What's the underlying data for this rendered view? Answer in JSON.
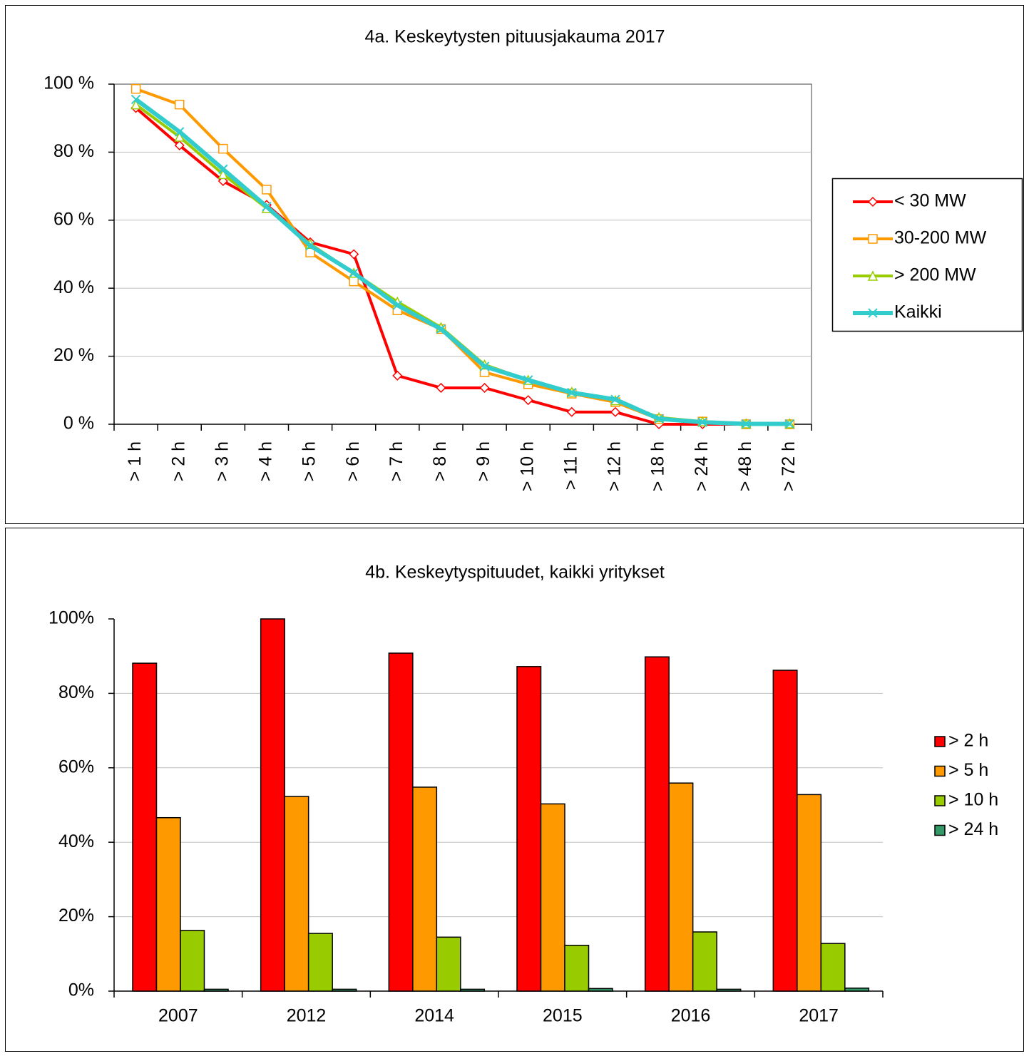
{
  "chart_data": [
    {
      "type": "line",
      "title": "4a. Keskeytysten pituusjakauma 2017",
      "categories": [
        "> 1 h",
        "> 2 h",
        "> 3 h",
        "> 4 h",
        "> 5 h",
        "> 6 h",
        "> 7 h",
        "> 8 h",
        "> 9 h",
        "> 10 h",
        "> 11 h",
        "> 12 h",
        "> 18 h",
        "> 24 h",
        "> 48 h",
        "> 72 h"
      ],
      "series": [
        {
          "name": "< 30 MW",
          "color": "#ff0000",
          "marker": "diamond",
          "values": [
            93,
            82,
            71.5,
            64.5,
            53.5,
            50,
            14.3,
            10.7,
            10.7,
            7.1,
            3.6,
            3.6,
            0,
            0,
            0,
            0
          ]
        },
        {
          "name": "30-200 MW",
          "color": "#ff9900",
          "marker": "square",
          "values": [
            98.6,
            94,
            81,
            69,
            50.5,
            42,
            33.5,
            28,
            15.3,
            11.8,
            9,
            6.5,
            1.5,
            0.8,
            0,
            0
          ]
        },
        {
          "name": "> 200 MW",
          "color": "#99cc00",
          "marker": "triangle",
          "values": [
            94,
            84.5,
            73.5,
            63.5,
            53,
            44.5,
            36,
            28.5,
            17.5,
            13,
            9.5,
            7,
            2,
            0.8,
            0.2,
            0.2
          ]
        },
        {
          "name": "Kaikki",
          "color": "#33cccc",
          "marker": "x",
          "values": [
            95.5,
            86,
            75,
            64,
            52.5,
            44.5,
            35,
            28,
            17,
            13,
            9.3,
            7.3,
            1.6,
            0.6,
            0.1,
            0.1
          ]
        }
      ],
      "ylim": [
        0,
        100
      ],
      "yticks": [
        {
          "value": 0,
          "label": "0 %"
        },
        {
          "value": 20,
          "label": "20 %"
        },
        {
          "value": 40,
          "label": "40 %"
        },
        {
          "value": 60,
          "label": "60 %"
        },
        {
          "value": 80,
          "label": "80 %"
        },
        {
          "value": 100,
          "label": "100 %"
        }
      ],
      "grid": true,
      "legend": "right"
    },
    {
      "type": "bar",
      "title": "4b. Keskeytyspituudet, kaikki yritykset",
      "categories": [
        "2007",
        "2012",
        "2014",
        "2015",
        "2016",
        "2017"
      ],
      "series": [
        {
          "name": "> 2 h",
          "color": "#ff0000",
          "values": [
            88.1,
            100,
            90.8,
            87.2,
            89.8,
            86.2
          ]
        },
        {
          "name": "> 5 h",
          "color": "#ff9900",
          "values": [
            46.6,
            52.3,
            54.8,
            50.3,
            55.9,
            52.8
          ]
        },
        {
          "name": "> 10 h",
          "color": "#99cc00",
          "values": [
            16.3,
            15.5,
            14.5,
            12.3,
            15.9,
            12.8
          ]
        },
        {
          "name": "> 24 h",
          "color": "#339966",
          "values": [
            0.5,
            0.5,
            0.5,
            0.7,
            0.5,
            0.8
          ]
        }
      ],
      "ylim": [
        0,
        100
      ],
      "yticks": [
        {
          "value": 0,
          "label": "0%"
        },
        {
          "value": 20,
          "label": "20%"
        },
        {
          "value": 40,
          "label": "40%"
        },
        {
          "value": 60,
          "label": "60%"
        },
        {
          "value": 80,
          "label": "80%"
        },
        {
          "value": 100,
          "label": "100%"
        }
      ],
      "grid": true,
      "legend": "right"
    }
  ]
}
